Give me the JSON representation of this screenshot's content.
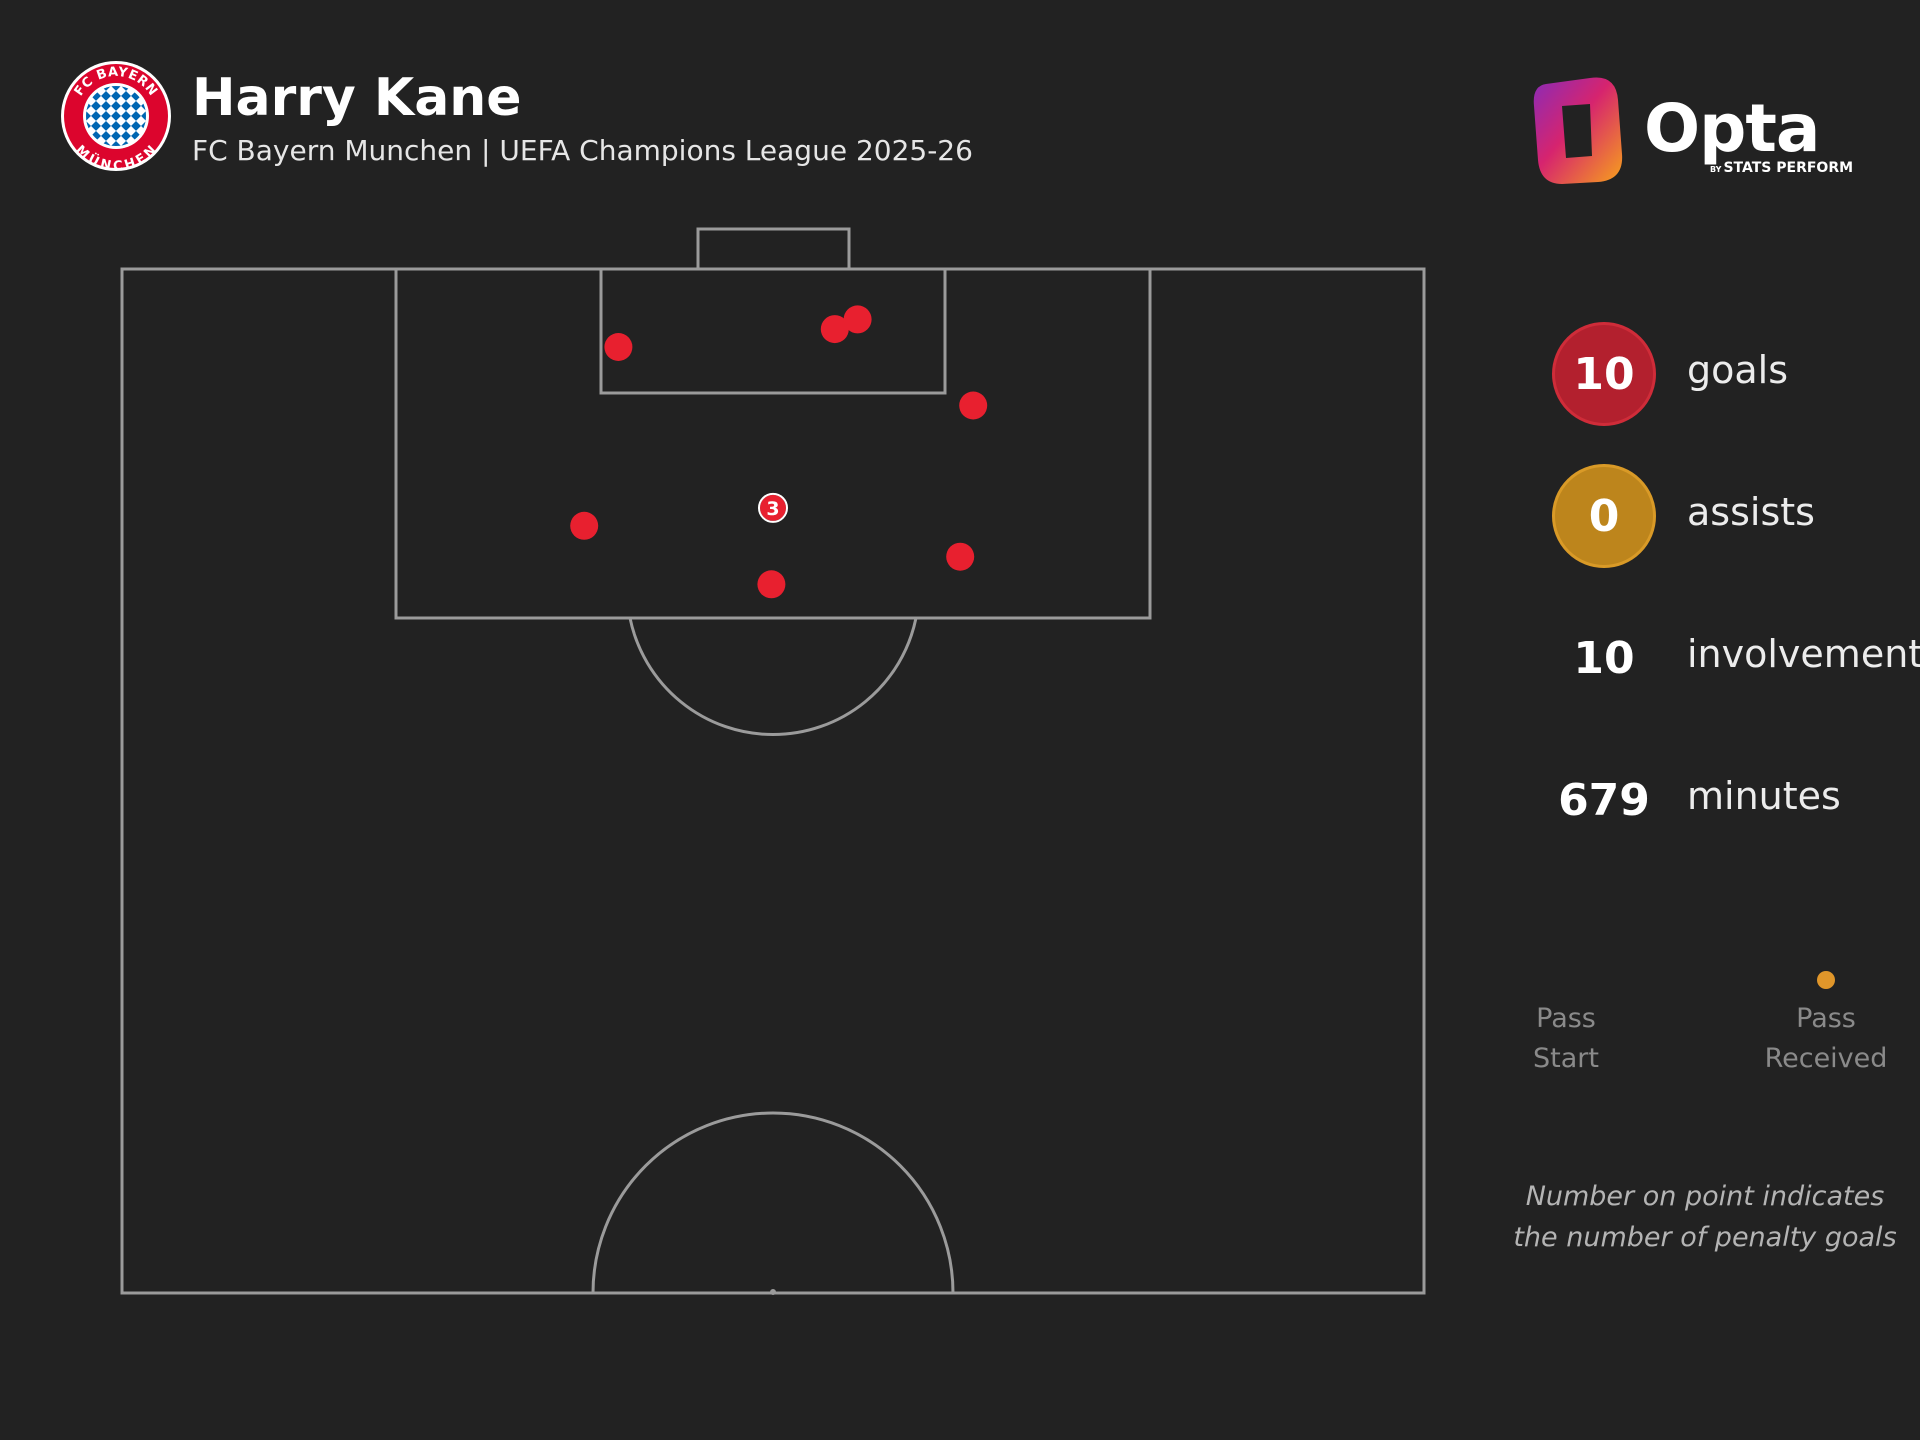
{
  "header": {
    "player_name": "Harry Kane",
    "subtitle": "FC Bayern Munchen | UEFA Champions League 2025-26",
    "club_crest": {
      "icon": "fc-bayern-crest-icon",
      "text_top": "FC BAYERN",
      "text_bottom": "MÜNCHEN",
      "colors": {
        "red": "#dc052d",
        "blue": "#0066b2",
        "white": "#ffffff"
      }
    }
  },
  "brand": {
    "name": "Opta",
    "tagline_by": "BY",
    "tagline": "STATS PERFORM",
    "icon": "opta-logo-icon"
  },
  "stats": [
    {
      "value": "10",
      "label": "goals",
      "fill": "#b3202e",
      "stroke": "#cf2c39"
    },
    {
      "value": "0",
      "label": "assists",
      "fill": "#bd851c",
      "stroke": "#d99a27"
    },
    {
      "value": "10",
      "label": "involvements",
      "fill": "none",
      "stroke": "none"
    },
    {
      "value": "679",
      "label": "minutes",
      "fill": "none",
      "stroke": "none"
    }
  ],
  "legend": {
    "start_label_1": "Pass",
    "start_label_2": "Start",
    "end_label_1": "Pass",
    "end_label_2": "Received",
    "line_color": "#e0962a"
  },
  "note": "Number on point indicates the number of penalty goals",
  "chart_data": {
    "type": "scatter",
    "description_of_axes": "half-pitch shot map; x = distance across pitch width from left touchline (yards, 0-80), y = distance from goal line (yards, 0-63)",
    "x_range": [
      0,
      80
    ],
    "y_range": [
      0,
      63
    ],
    "marker_color": "#e8202f",
    "points": [
      {
        "x": 30.5,
        "y": 4.8,
        "penalty_goals": null
      },
      {
        "x": 43.8,
        "y": 3.7,
        "penalty_goals": null
      },
      {
        "x": 45.2,
        "y": 3.1,
        "penalty_goals": null
      },
      {
        "x": 52.3,
        "y": 8.4,
        "penalty_goals": null
      },
      {
        "x": 28.4,
        "y": 15.8,
        "penalty_goals": null
      },
      {
        "x": 40.0,
        "y": 14.7,
        "penalty_goals": "3"
      },
      {
        "x": 51.5,
        "y": 17.7,
        "penalty_goals": null
      },
      {
        "x": 39.9,
        "y": 19.4,
        "penalty_goals": null
      }
    ]
  }
}
